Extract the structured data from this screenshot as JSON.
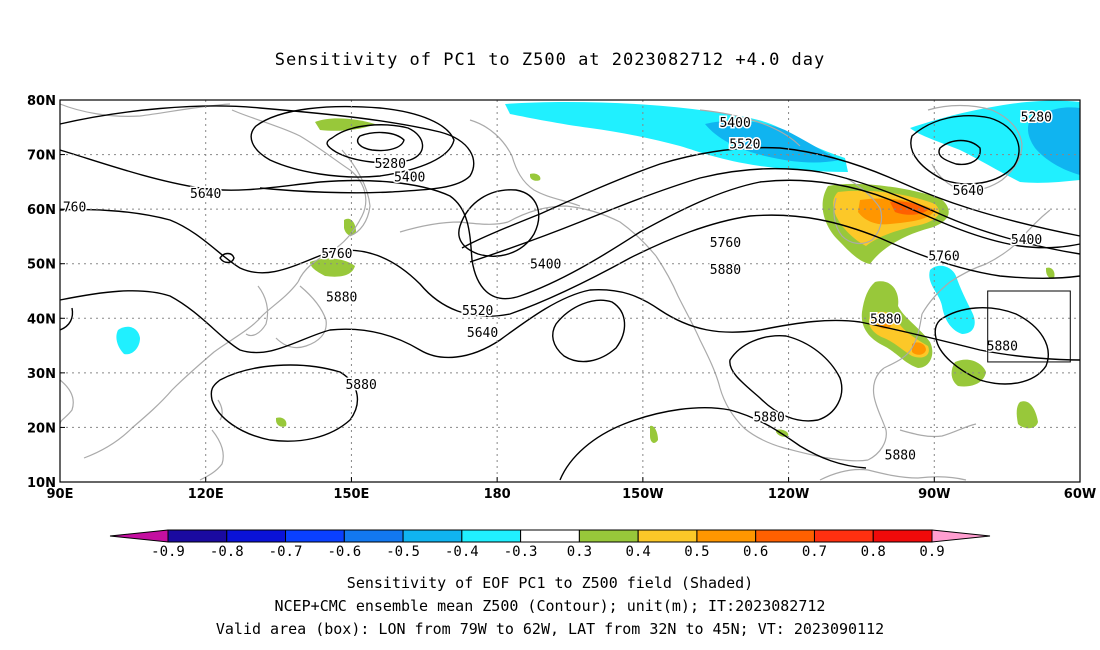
{
  "title": "Sensitivity of PC1 to Z500 at 2023082712 +4.0 day",
  "captions": {
    "line1": "Sensitivity of EOF PC1 to Z500 field (Shaded)",
    "line2": "NCEP+CMC ensemble mean Z500 (Contour); unit(m); IT:2023082712",
    "line3": "Valid area (box): LON from 79W to 62W, LAT from 32N to 45N; VT: 2023090112"
  },
  "map": {
    "lat_labels": [
      "80N",
      "70N",
      "60N",
      "50N",
      "40N",
      "30N",
      "20N",
      "10N"
    ],
    "lon_labels": [
      "90E",
      "120E",
      "150E",
      "180",
      "150W",
      "120W",
      "90W",
      "60W"
    ],
    "lon_range": [
      90,
      300
    ],
    "lat_range": [
      10,
      80
    ],
    "contour_labels": [
      {
        "text": "5280",
        "lon": 158,
        "lat": 68.5
      },
      {
        "text": "5400",
        "lon": 162,
        "lat": 66
      },
      {
        "text": "5640",
        "lon": 120,
        "lat": 63
      },
      {
        "text": "760",
        "lon": 93,
        "lat": 60.5
      },
      {
        "text": "5760",
        "lon": 147,
        "lat": 52
      },
      {
        "text": "5880",
        "lon": 148,
        "lat": 44
      },
      {
        "text": "5400",
        "lon": 229,
        "lat": 76
      },
      {
        "text": "5520",
        "lon": 231,
        "lat": 72
      },
      {
        "text": "5640",
        "lon": 277,
        "lat": 63.5
      },
      {
        "text": "5280",
        "lon": 291,
        "lat": 77
      },
      {
        "text": "5400",
        "lon": 190,
        "lat": 50
      },
      {
        "text": "5520",
        "lon": 176,
        "lat": 41.5
      },
      {
        "text": "5640",
        "lon": 177,
        "lat": 37.5
      },
      {
        "text": "5760",
        "lon": 227,
        "lat": 54
      },
      {
        "text": "5880",
        "lon": 227,
        "lat": 49
      },
      {
        "text": "5880",
        "lon": 260,
        "lat": 40
      },
      {
        "text": "5880",
        "lon": 284,
        "lat": 35
      },
      {
        "text": "5400",
        "lon": 289,
        "lat": 54.5
      },
      {
        "text": "5760",
        "lon": 272,
        "lat": 51.5
      },
      {
        "text": "5880",
        "lon": 152,
        "lat": 28
      },
      {
        "text": "5880",
        "lon": 236,
        "lat": 22
      },
      {
        "text": "5880",
        "lon": 263,
        "lat": 15
      }
    ],
    "valid_box": {
      "lon_west": -79,
      "lon_east": -62,
      "lat_south": 32,
      "lat_north": 45
    }
  },
  "colorbar": {
    "labels": [
      "-0.9",
      "-0.8",
      "-0.7",
      "-0.6",
      "-0.5",
      "-0.4",
      "-0.3",
      "0.3",
      "0.4",
      "0.5",
      "0.6",
      "0.7",
      "0.8",
      "0.9"
    ],
    "colors": [
      "#1a0aa0",
      "#0a12d8",
      "#0a40ff",
      "#1278f0",
      "#10b4f0",
      "#20f0ff",
      "#ffffff",
      "#98c83a",
      "#fcc828",
      "#ff9600",
      "#ff6000",
      "#ff3010",
      "#f00a0a"
    ],
    "low_arrow_color": "#c40fa0",
    "high_arrow_color": "#ff9ed0"
  },
  "colors": {
    "coast": "#aaaaaa",
    "contour": "#000000",
    "grid": "#888888"
  }
}
